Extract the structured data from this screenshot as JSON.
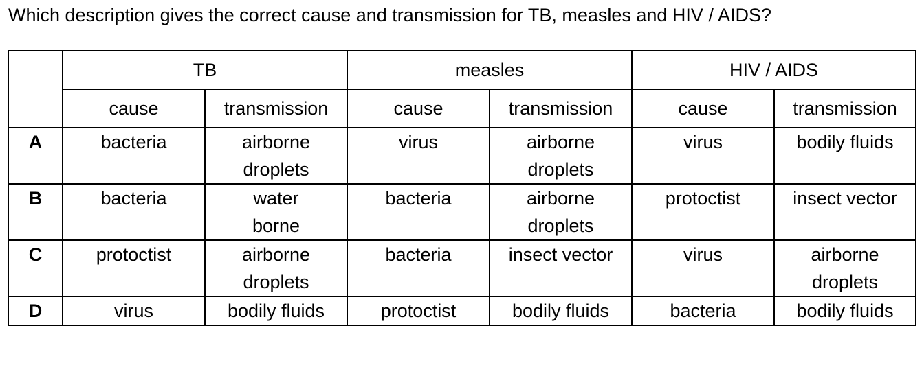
{
  "question": "Which description gives the correct cause and transmission for TB, measles and HIV / AIDS?",
  "diseases": [
    "TB",
    "measles",
    "HIV / AIDS"
  ],
  "subheaders": [
    "cause",
    "transmission",
    "cause",
    "transmission",
    "cause",
    "transmission"
  ],
  "options": [
    {
      "letter": "A",
      "cells": [
        "bacteria",
        "airborne droplets",
        "virus",
        "airborne droplets",
        "virus",
        "bodily fluids"
      ]
    },
    {
      "letter": "B",
      "cells": [
        "bacteria",
        "water borne",
        "bacteria",
        "airborne droplets",
        "protoctist",
        "insect vector"
      ]
    },
    {
      "letter": "C",
      "cells": [
        "protoctist",
        "airborne droplets",
        "bacteria",
        "insect vector",
        "virus",
        "airborne droplets"
      ]
    },
    {
      "letter": "D",
      "cells": [
        "virus",
        "bodily fluids",
        "protoctist",
        "bodily fluids",
        "bacteria",
        "bodily fluids"
      ]
    }
  ]
}
